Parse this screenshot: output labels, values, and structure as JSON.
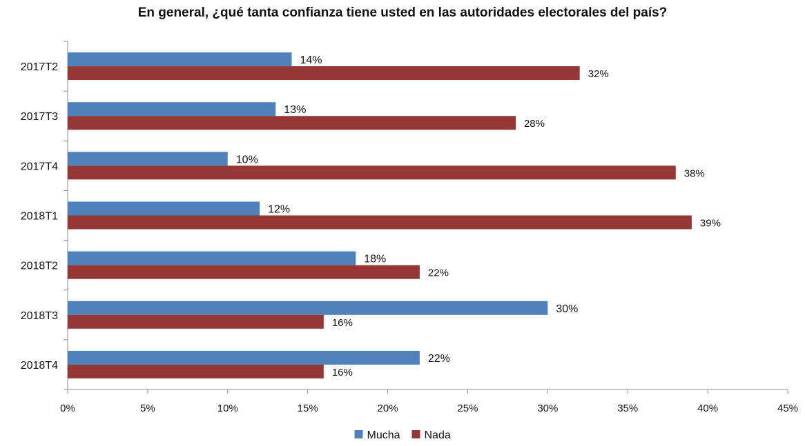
{
  "chart_data": {
    "type": "bar",
    "orientation": "horizontal",
    "title": "En general, ¿qué tanta confianza tiene usted en las autoridades electorales del país?",
    "categories": [
      "2017T2",
      "2017T3",
      "2017T4",
      "2018T1",
      "2018T2",
      "2018T3",
      "2018T4"
    ],
    "series": [
      {
        "name": "Mucha",
        "values": [
          14,
          13,
          10,
          12,
          18,
          30,
          22
        ],
        "labels": [
          "14%",
          "13%",
          "10%",
          "12%",
          "18%",
          "30%",
          "22%"
        ],
        "color": "#4f81bd"
      },
      {
        "name": "Nada",
        "values": [
          32,
          28,
          38,
          39,
          22,
          16,
          16
        ],
        "labels": [
          "32%",
          "28%",
          "38%",
          "39%",
          "22%",
          "16%",
          "16%"
        ],
        "color": "#953735"
      }
    ],
    "xlim": [
      0,
      45
    ],
    "xticks": [
      0,
      5,
      10,
      15,
      20,
      25,
      30,
      35,
      40,
      45
    ],
    "xtick_labels": [
      "0%",
      "5%",
      "10%",
      "15%",
      "20%",
      "25%",
      "30%",
      "35%",
      "40%",
      "45%"
    ],
    "grid": false,
    "legend": "bottom"
  }
}
